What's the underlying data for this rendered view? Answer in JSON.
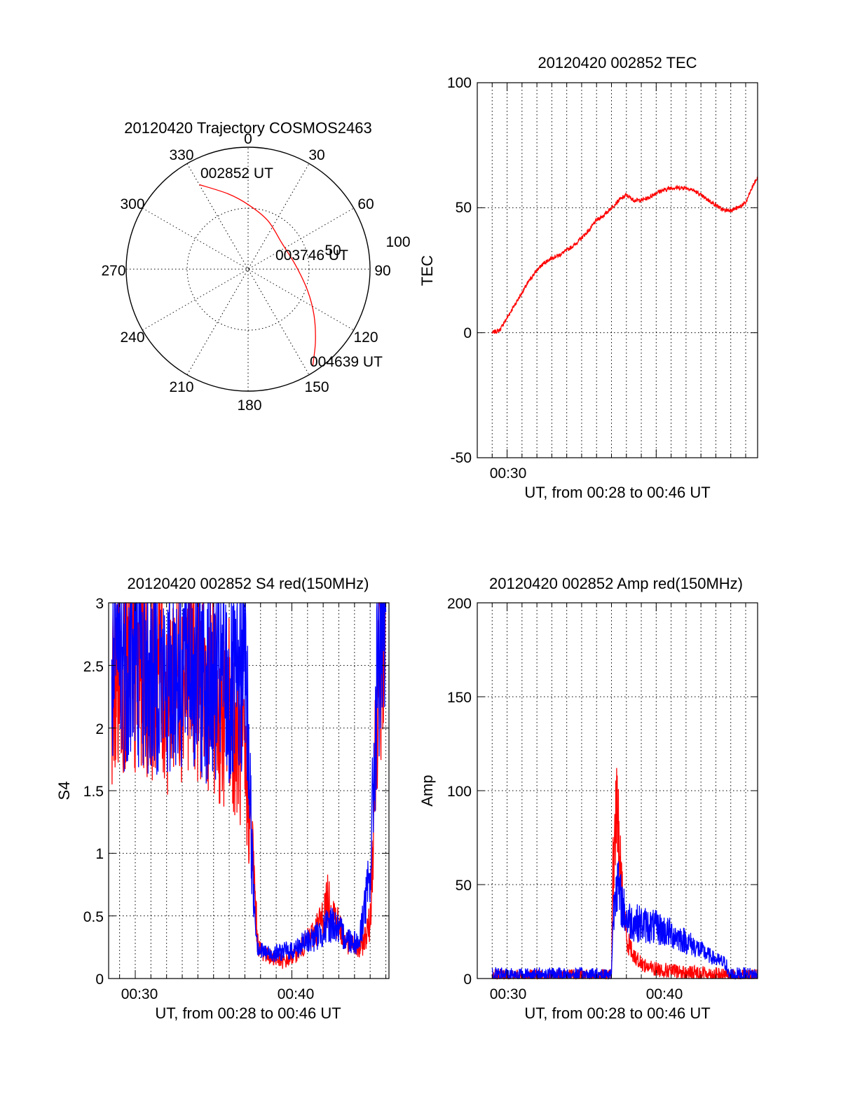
{
  "chart_data": [
    {
      "type": "polar",
      "title": "20120420 Trajectory COSMOS2463",
      "angle_labels": [
        "0",
        "30",
        "60",
        "90",
        "120",
        "150",
        "180",
        "210",
        "240",
        "270",
        "300",
        "330"
      ],
      "radial_labels": [
        "50",
        "100"
      ],
      "rlim": [
        0,
        100
      ],
      "grid": true,
      "series": [
        {
          "color": "#ff0000",
          "points": [
            {
              "az": 330,
              "r": 80
            },
            {
              "az": 345,
              "r": 64
            },
            {
              "az": 0,
              "r": 53
            },
            {
              "az": 22,
              "r": 43
            },
            {
              "az": 52,
              "r": 35
            },
            {
              "az": 85,
              "r": 39
            },
            {
              "az": 110,
              "r": 52
            },
            {
              "az": 125,
              "r": 66
            },
            {
              "az": 137,
              "r": 81
            },
            {
              "az": 146,
              "r": 95
            }
          ]
        }
      ],
      "annotations": [
        {
          "text": "002852 UT",
          "az": 330,
          "r": 80
        },
        {
          "text": "003746 UT",
          "az": 85,
          "r": 39
        },
        {
          "text": "004639 UT",
          "az": 146,
          "r": 95
        }
      ]
    },
    {
      "type": "line",
      "title": "20120420 002852 TEC",
      "xlabel": "UT, from 00:28 to 00:46 UT",
      "ylabel": "TEC",
      "xlim": [
        28.0,
        46.8
      ],
      "ylim": [
        -50,
        100
      ],
      "x_tick_labels": [
        {
          "x": 30,
          "label": "00:30"
        }
      ],
      "y_tick_labels": [
        "-50",
        "0",
        "50",
        "100"
      ],
      "grid": true,
      "series": [
        {
          "color": "#ff0000",
          "x": [
            29.0,
            29.5,
            30.0,
            30.5,
            31.0,
            31.5,
            32.0,
            32.5,
            33.0,
            33.5,
            34.0,
            34.5,
            35.0,
            35.5,
            36.0,
            36.5,
            37.0,
            37.5,
            38.0,
            38.5,
            39.0,
            39.5,
            40.0,
            40.5,
            41.0,
            41.5,
            42.0,
            42.5,
            43.0,
            43.5,
            44.0,
            44.5,
            45.0,
            45.5,
            46.0,
            46.5,
            46.8
          ],
          "y": [
            0,
            1,
            6,
            11,
            16,
            21,
            25,
            28,
            30,
            31,
            33,
            35,
            38,
            41,
            45,
            47,
            50,
            53,
            55,
            53,
            53,
            54,
            56,
            57,
            58,
            58,
            58,
            57,
            55,
            53,
            51,
            49,
            49,
            50,
            52,
            59,
            62
          ]
        }
      ]
    },
    {
      "type": "line",
      "title": "20120420 002852 S4 red(150MHz)",
      "xlabel": "UT, from 00:28 to 00:46 UT",
      "ylabel": "S4",
      "xlim": [
        28.3,
        46.2
      ],
      "ylim": [
        0,
        3
      ],
      "x_tick_labels": [
        {
          "x": 30,
          "label": "00:30"
        },
        {
          "x": 40,
          "label": "00:40"
        }
      ],
      "y_tick_labels": [
        "0",
        "0.5",
        "1",
        "1.5",
        "2",
        "2.5",
        "3"
      ],
      "grid": true,
      "series": [
        {
          "color": "#ff0000",
          "x": [
            28.5,
            29.0,
            29.5,
            30.0,
            30.5,
            31.0,
            31.5,
            32.0,
            32.5,
            33.0,
            33.5,
            34.0,
            34.5,
            35.0,
            35.5,
            36.0,
            36.5,
            37.0,
            37.3,
            37.5,
            37.8,
            38.0,
            38.5,
            39.0,
            39.5,
            40.0,
            40.5,
            41.0,
            41.5,
            42.0,
            42.3,
            42.6,
            43.0,
            43.5,
            44.0,
            44.3,
            44.6,
            45.0,
            45.5,
            46.0
          ],
          "y": [
            2.3,
            2.4,
            2.6,
            2.3,
            2.5,
            2.4,
            2.6,
            2.2,
            2.5,
            2.4,
            2.6,
            2.4,
            2.3,
            2.3,
            2.0,
            2.2,
            1.9,
            1.7,
            1.3,
            1.0,
            0.3,
            0.22,
            0.18,
            0.15,
            0.13,
            0.17,
            0.23,
            0.3,
            0.38,
            0.5,
            0.62,
            0.55,
            0.42,
            0.3,
            0.25,
            0.22,
            0.3,
            0.45,
            2.5,
            2.8
          ]
        },
        {
          "color": "#0000ff",
          "x": [
            28.5,
            29.0,
            29.5,
            30.0,
            30.5,
            31.0,
            31.5,
            32.0,
            32.5,
            33.0,
            33.5,
            34.0,
            34.5,
            35.0,
            35.5,
            36.0,
            36.5,
            37.0,
            37.3,
            37.5,
            37.8,
            38.0,
            38.5,
            39.0,
            39.5,
            40.0,
            40.5,
            41.0,
            41.5,
            42.0,
            42.3,
            42.6,
            43.0,
            43.5,
            44.0,
            44.3,
            44.6,
            45.0,
            45.5,
            46.0
          ],
          "y": [
            2.4,
            2.6,
            2.5,
            2.6,
            2.5,
            2.4,
            2.5,
            2.3,
            2.5,
            2.5,
            2.6,
            2.4,
            2.4,
            2.3,
            2.5,
            2.2,
            2.3,
            2.6,
            1.6,
            0.8,
            0.28,
            0.22,
            0.2,
            0.2,
            0.22,
            0.22,
            0.26,
            0.3,
            0.33,
            0.38,
            0.42,
            0.45,
            0.38,
            0.32,
            0.3,
            0.28,
            0.55,
            0.8,
            2.6,
            2.7
          ]
        }
      ]
    },
    {
      "type": "line",
      "title": "20120420 002852 Amp red(150MHz)",
      "xlabel": "UT, from 00:28 to 00:46 UT",
      "ylabel": "Amp",
      "xlim": [
        28.0,
        46.8
      ],
      "ylim": [
        0,
        200
      ],
      "x_tick_labels": [
        {
          "x": 30,
          "label": "00:30"
        },
        {
          "x": 40,
          "label": "00:40"
        }
      ],
      "y_tick_labels": [
        "0",
        "50",
        "100",
        "150",
        "200"
      ],
      "grid": true,
      "series": [
        {
          "color": "#ff0000",
          "x": [
            29.0,
            33.0,
            36.0,
            37.0,
            37.1,
            37.3,
            37.5,
            37.7,
            38.0,
            38.5,
            39.0,
            39.5,
            40.0,
            41.0,
            42.0,
            43.0,
            44.0,
            45.0,
            46.8
          ],
          "y": [
            1,
            1,
            1,
            1,
            55,
            88,
            75,
            45,
            22,
            12,
            8,
            6,
            5,
            4,
            3,
            3,
            2,
            1,
            1
          ]
        },
        {
          "color": "#0000ff",
          "x": [
            29.0,
            33.0,
            36.0,
            37.0,
            37.1,
            37.3,
            37.5,
            37.7,
            38.0,
            38.5,
            39.0,
            39.5,
            40.0,
            41.0,
            42.0,
            43.0,
            44.0,
            44.7,
            44.8,
            46.8
          ],
          "y": [
            2,
            2,
            2,
            2,
            30,
            55,
            45,
            40,
            32,
            30,
            29,
            28,
            27,
            24,
            20,
            15,
            10,
            8,
            2,
            2
          ]
        }
      ]
    }
  ]
}
